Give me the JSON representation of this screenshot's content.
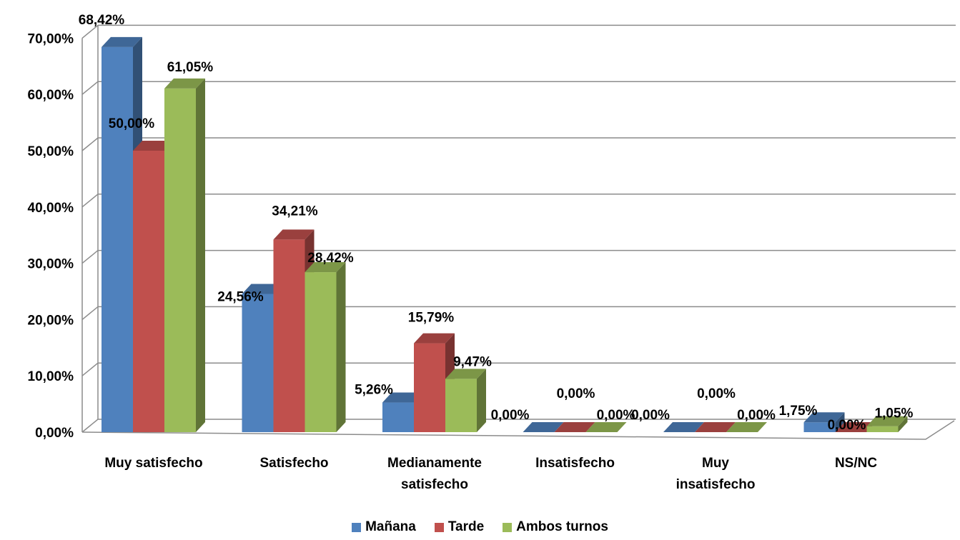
{
  "chart_data": {
    "type": "bar",
    "three_d": true,
    "categories": [
      [
        "Muy satisfecho"
      ],
      [
        "Satisfecho"
      ],
      [
        "Medianamente",
        "satisfecho"
      ],
      [
        "Insatisfecho"
      ],
      [
        "Muy",
        "insatisfecho"
      ],
      [
        "NS/NC"
      ]
    ],
    "series": [
      {
        "name": "Mañana",
        "color": "#4F81BD",
        "values": [
          68.42,
          24.56,
          5.26,
          0.0,
          0.0,
          1.75
        ],
        "labels": [
          "68,42%",
          "24,56%",
          "5,26%",
          "0,00%",
          "0,00%",
          "1,75%"
        ]
      },
      {
        "name": "Tarde",
        "color": "#C0504D",
        "values": [
          50.0,
          34.21,
          15.79,
          0.0,
          0.0,
          0.0
        ],
        "labels": [
          "50,00%",
          "34,21%",
          "15,79%",
          "0,00%",
          "0,00%",
          "0,00%"
        ]
      },
      {
        "name": "Ambos turnos",
        "color": "#9BBB59",
        "values": [
          61.05,
          28.42,
          9.47,
          0.0,
          0.0,
          1.05
        ],
        "labels": [
          "61,05%",
          "28,42%",
          "9,47%",
          "0,00%",
          "0,00%",
          "1,05%"
        ]
      }
    ],
    "yticks": [
      {
        "value": 0,
        "label": "0,00%"
      },
      {
        "value": 10,
        "label": "10,00%"
      },
      {
        "value": 20,
        "label": "20,00%"
      },
      {
        "value": 30,
        "label": "30,00%"
      },
      {
        "value": 40,
        "label": "40,00%"
      },
      {
        "value": 50,
        "label": "50,00%"
      },
      {
        "value": 60,
        "label": "60,00%"
      },
      {
        "value": 70,
        "label": "70,00%"
      }
    ],
    "ylim": [
      0,
      70
    ],
    "grid": true,
    "legend_position": "bottom",
    "title": "",
    "xlabel": "",
    "ylabel": ""
  }
}
